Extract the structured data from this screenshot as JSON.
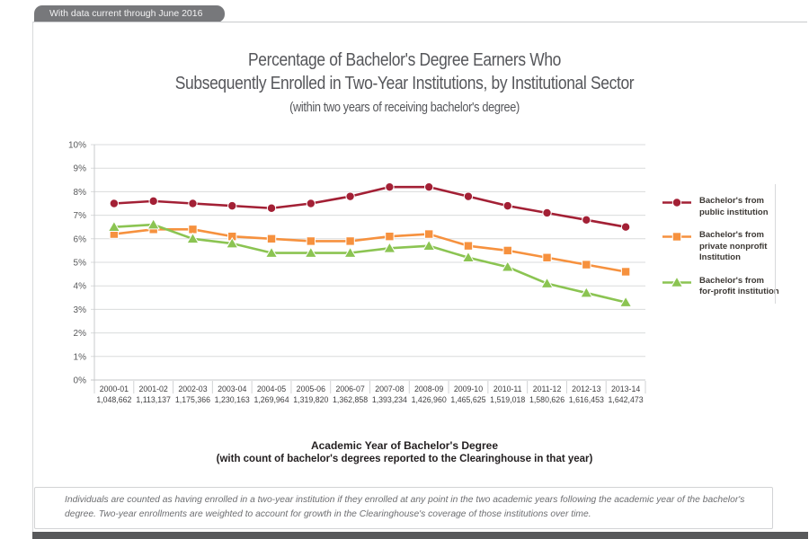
{
  "banner": {
    "label": "With data current through June 2016"
  },
  "footnote": {
    "text": "Individuals are counted as having enrolled in a two-year institution if they enrolled at any point in the two academic years following the academic year of the bachelor's degree. Two-year enrollments are weighted to account for growth in the Clearinghouse's coverage of those institutions over time."
  },
  "colors": {
    "public_series": "#A32035",
    "private_nonprofit_series": "#F6913E",
    "for_profit_series": "#8BC452",
    "gridline": "#DADBDC",
    "axis_label": "#58595B",
    "tab_background": "#77787B",
    "bottom_bar": "#58595B"
  },
  "chart_data": {
    "type": "line",
    "title": "Percentage of Bachelor's Degree Earners Who Subsequently Enrolled in Two-Year Institutions, by Institutional Sector (within two years of receiving bachelor's degree)",
    "title_line1": "Percentage of Bachelor's Degree Earners Who",
    "title_line2": "Subsequently Enrolled in Two-Year Institutions, by Institutional Sector",
    "subtitle": "(within two years of receiving bachelor's degree)",
    "xlabel_line1": "Academic Year of Bachelor's Degree",
    "xlabel_line2": "(with count of bachelor's degrees reported to the Clearinghouse in that year)",
    "ylabel": "",
    "ylim": [
      0,
      10
    ],
    "grid": "horizontal",
    "legend_position": "right",
    "y_tick_labels": [
      "0%",
      "1%",
      "2%",
      "3%",
      "4%",
      "5%",
      "6%",
      "7%",
      "8%",
      "9%",
      "10%"
    ],
    "categories": [
      "2000-01",
      "2001-02",
      "2002-03",
      "2003-04",
      "2004-05",
      "2005-06",
      "2006-07",
      "2007-08",
      "2008-09",
      "2009-10",
      "2010-11",
      "2011-12",
      "2012-13",
      "2013-14"
    ],
    "category_counts": [
      "1,048,662",
      "1,113,137",
      "1,175,366",
      "1,230,163",
      "1,269,964",
      "1,319,820",
      "1,362,858",
      "1,393,234",
      "1,426,960",
      "1,465,625",
      "1,519,018",
      "1,580,626",
      "1,616,453",
      "1,642,473"
    ],
    "series": [
      {
        "id": "public",
        "name": "Bachelor's from public institution",
        "legend_lines": [
          "Bachelor's from",
          "public institution"
        ],
        "marker": "circle",
        "color": "#A32035",
        "values": [
          7.5,
          7.6,
          7.5,
          7.4,
          7.3,
          7.5,
          7.8,
          8.2,
          8.2,
          7.8,
          7.4,
          7.1,
          6.8,
          6.5
        ]
      },
      {
        "id": "private-nonprofit",
        "name": "Bachelor's from private nonprofit Institution",
        "legend_lines": [
          "Bachelor's from",
          "private nonprofit",
          "Institution"
        ],
        "marker": "square",
        "color": "#F6913E",
        "values": [
          6.2,
          6.4,
          6.4,
          6.1,
          6.0,
          5.9,
          5.9,
          6.1,
          6.2,
          5.7,
          5.5,
          5.2,
          4.9,
          4.6
        ]
      },
      {
        "id": "for-profit",
        "name": "Bachelor's from for-profit institution",
        "legend_lines": [
          "Bachelor's from",
          "for-profit institution"
        ],
        "marker": "triangle",
        "color": "#8BC452",
        "values": [
          6.5,
          6.6,
          6.0,
          5.8,
          5.4,
          5.4,
          5.4,
          5.6,
          5.7,
          5.2,
          4.8,
          4.1,
          3.7,
          3.3
        ]
      }
    ]
  }
}
